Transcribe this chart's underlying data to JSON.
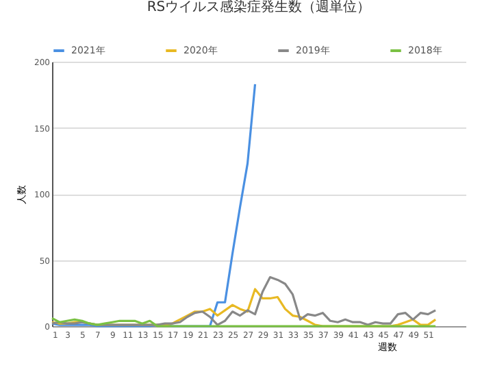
{
  "chart_data": {
    "type": "line",
    "title": "RSウイルス感染症発生数（週単位）",
    "xlabel": "週数",
    "ylabel": "人数",
    "x": [
      1,
      2,
      3,
      4,
      5,
      6,
      7,
      8,
      9,
      10,
      11,
      12,
      13,
      14,
      15,
      16,
      17,
      18,
      19,
      20,
      21,
      22,
      23,
      24,
      25,
      26,
      27,
      28,
      29,
      30,
      31,
      32,
      33,
      34,
      35,
      36,
      37,
      38,
      39,
      40,
      41,
      42,
      43,
      44,
      45,
      46,
      47,
      48,
      49,
      50,
      51,
      52
    ],
    "xlim": [
      1,
      56
    ],
    "xticks": [
      1,
      3,
      5,
      7,
      9,
      11,
      13,
      15,
      17,
      19,
      21,
      23,
      25,
      27,
      29,
      31,
      33,
      35,
      37,
      39,
      41,
      43,
      45,
      47,
      49,
      51
    ],
    "ylim": [
      0,
      200
    ],
    "yticks": [
      0,
      50,
      100,
      150,
      200
    ],
    "grid": "y",
    "legend": "top",
    "line_style": "solid",
    "marker": "none",
    "series": [
      {
        "name": "2021年",
        "color": "#4a90e2",
        "values": [
          2,
          1,
          1,
          1,
          1,
          1,
          0,
          0,
          0,
          0,
          0,
          0,
          0,
          0,
          1,
          1,
          0,
          0,
          0,
          0,
          0,
          0,
          18,
          18,
          55,
          90,
          123,
          183,
          null,
          null,
          null,
          null,
          null,
          null,
          null,
          null,
          null,
          null,
          null,
          null,
          null,
          null,
          null,
          null,
          null,
          null,
          null,
          null,
          null,
          null,
          null,
          null
        ]
      },
      {
        "name": "2020年",
        "color": "#e8b923",
        "values": [
          3,
          2,
          2,
          3,
          3,
          2,
          1,
          1,
          1,
          1,
          1,
          1,
          1,
          1,
          1,
          1,
          2,
          5,
          8,
          11,
          11,
          13,
          8,
          12,
          16,
          13,
          11,
          28,
          21,
          21,
          22,
          13,
          8,
          7,
          4,
          1,
          0,
          0,
          0,
          0,
          0,
          0,
          0,
          0,
          0,
          0,
          1,
          3,
          5,
          1,
          1,
          5
        ]
      },
      {
        "name": "2019年",
        "color": "#888888",
        "values": [
          2,
          3,
          2,
          2,
          3,
          2,
          1,
          1,
          1,
          1,
          1,
          1,
          1,
          1,
          1,
          2,
          2,
          3,
          7,
          10,
          11,
          7,
          1,
          4,
          11,
          8,
          12,
          9,
          26,
          37,
          35,
          32,
          24,
          5,
          9,
          8,
          10,
          4,
          3,
          5,
          3,
          3,
          1,
          3,
          2,
          2,
          9,
          10,
          5,
          10,
          9,
          12
        ]
      },
      {
        "name": "2018年",
        "color": "#7ac143",
        "values": [
          6,
          3,
          4,
          5,
          4,
          2,
          1,
          2,
          3,
          4,
          4,
          4,
          2,
          4,
          0,
          0,
          0,
          0,
          0,
          0,
          0,
          0,
          0,
          0,
          0,
          0,
          0,
          0,
          0,
          0,
          0,
          0,
          0,
          0,
          0,
          0,
          0,
          0,
          0,
          0,
          0,
          0,
          0,
          0,
          0,
          0,
          0,
          0,
          0,
          0,
          0,
          0
        ]
      }
    ]
  }
}
